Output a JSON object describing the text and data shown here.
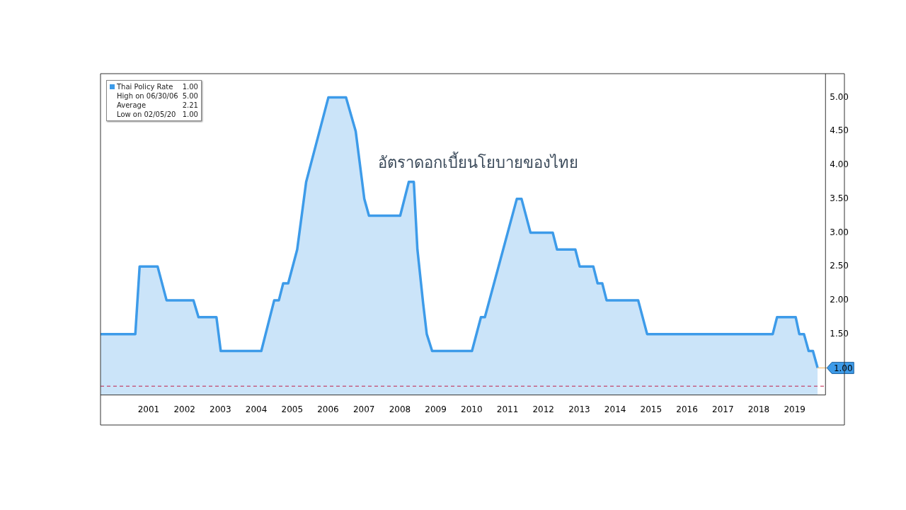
{
  "chart_data": {
    "type": "area",
    "title": "อัตราดอกเบี้ยนโยบายของไทย",
    "series": [
      {
        "name": "Thai Policy Rate",
        "color": "#3d9be9",
        "x": [
          2000.16,
          2001.13,
          2001.25,
          2001.75,
          2002.0,
          2002.75,
          2002.89,
          2003.39,
          2003.51,
          2004.64,
          2005.0,
          2005.13,
          2005.25,
          2005.39,
          2005.64,
          2005.89,
          2006.51,
          2007.0,
          2007.27,
          2007.51,
          2007.64,
          2008.51,
          2008.75,
          2008.89,
          2008.99,
          2009.15,
          2009.25,
          2009.4,
          2010.51,
          2010.76,
          2010.87,
          2011.76,
          2011.89,
          2012.14,
          2012.76,
          2012.88,
          2013.39,
          2013.51,
          2013.89,
          2014.01,
          2014.14,
          2014.26,
          2015.14,
          2015.39,
          2018.89,
          2019.01,
          2019.53,
          2019.63,
          2019.76,
          2019.89,
          2020.01,
          2020.14
        ],
        "values": [
          1.5,
          1.5,
          2.5,
          2.5,
          2.0,
          2.0,
          1.75,
          1.75,
          1.25,
          1.25,
          2.0,
          2.0,
          2.25,
          2.25,
          2.75,
          3.75,
          5.0,
          5.0,
          4.5,
          3.5,
          3.25,
          3.25,
          3.75,
          3.75,
          2.75,
          1.95,
          1.5,
          1.25,
          1.25,
          1.75,
          1.75,
          3.5,
          3.5,
          3.0,
          3.0,
          2.75,
          2.75,
          2.5,
          2.5,
          2.25,
          2.25,
          2.0,
          2.0,
          1.5,
          1.5,
          1.75,
          1.75,
          1.5,
          1.5,
          1.25,
          1.25,
          1.0
        ]
      }
    ],
    "xlim": [
      2000.16,
      2020.36
    ],
    "xticks": [
      {
        "value": 2001.5,
        "label": "2001"
      },
      {
        "value": 2002.5,
        "label": "2002"
      },
      {
        "value": 2003.5,
        "label": "2003"
      },
      {
        "value": 2004.5,
        "label": "2004"
      },
      {
        "value": 2005.5,
        "label": "2005"
      },
      {
        "value": 2006.5,
        "label": "2006"
      },
      {
        "value": 2007.5,
        "label": "2007"
      },
      {
        "value": 2008.5,
        "label": "2008"
      },
      {
        "value": 2009.5,
        "label": "2009"
      },
      {
        "value": 2010.5,
        "label": "2010"
      },
      {
        "value": 2011.5,
        "label": "2011"
      },
      {
        "value": 2012.5,
        "label": "2012"
      },
      {
        "value": 2013.5,
        "label": "2013"
      },
      {
        "value": 2014.5,
        "label": "2014"
      },
      {
        "value": 2015.5,
        "label": "2015"
      },
      {
        "value": 2016.5,
        "label": "2016"
      },
      {
        "value": 2017.5,
        "label": "2017"
      },
      {
        "value": 2018.5,
        "label": "2018"
      },
      {
        "value": 2019.5,
        "label": "2019"
      }
    ],
    "ylim": [
      0.6,
      5.35
    ],
    "yticks": [
      {
        "value": 1.5,
        "label": "1.50"
      },
      {
        "value": 2,
        "label": "2.00"
      },
      {
        "value": 2.5,
        "label": "2.50"
      },
      {
        "value": 3,
        "label": "3.00"
      },
      {
        "value": 3.5,
        "label": "3.50"
      },
      {
        "value": 4,
        "label": "4.00"
      },
      {
        "value": 4.5,
        "label": "4.50"
      },
      {
        "value": 5,
        "label": "5.00"
      }
    ],
    "ref_lines": [
      {
        "axis": "y",
        "value": 0.73,
        "label": null,
        "color": "#c0204a",
        "line_style": "dashed"
      }
    ],
    "annotations": [
      "1.00",
      "High on 06/30/06 5.00",
      "Average 2.21",
      "Low on 02/05/20 1.00",
      {
        "text": "1.00",
        "x": 2020.14,
        "y": 1.0
      }
    ],
    "legend": "top left"
  }
}
